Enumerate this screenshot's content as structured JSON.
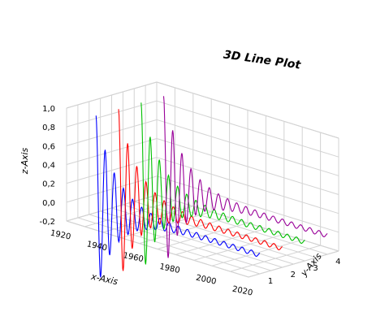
{
  "chart_data": {
    "type": "line",
    "title": "3D Line Plot",
    "xlabel": "x-Axis",
    "ylabel": "y-Axis",
    "zlabel": "z-Axis",
    "xlim": [
      1920,
      2020
    ],
    "ylim": [
      0.5,
      4.5
    ],
    "zlim": [
      -0.2,
      1.0
    ],
    "x_ticks": [
      "1920",
      "1940",
      "1960",
      "1980",
      "2000",
      "2020"
    ],
    "y_ticks": [
      "1",
      "2",
      "3",
      "4"
    ],
    "z_ticks": [
      "1,0",
      "0,8",
      "0,6",
      "0,4",
      "0,2",
      "0,0",
      "-0,2"
    ],
    "grid": true,
    "series": [
      {
        "y": 1,
        "color": "#0000ff",
        "x_start": 1930,
        "x_end": 2020,
        "z_peak": 0.92
      },
      {
        "y": 2,
        "color": "#ff0000",
        "x_start": 1930,
        "x_end": 2020,
        "z_peak": 0.92
      },
      {
        "y": 3,
        "color": "#00c000",
        "x_start": 1930,
        "x_end": 2020,
        "z_peak": 0.92
      },
      {
        "y": 4,
        "color": "#990099",
        "x_start": 1930,
        "x_end": 2020,
        "z_peak": 0.92
      }
    ]
  }
}
